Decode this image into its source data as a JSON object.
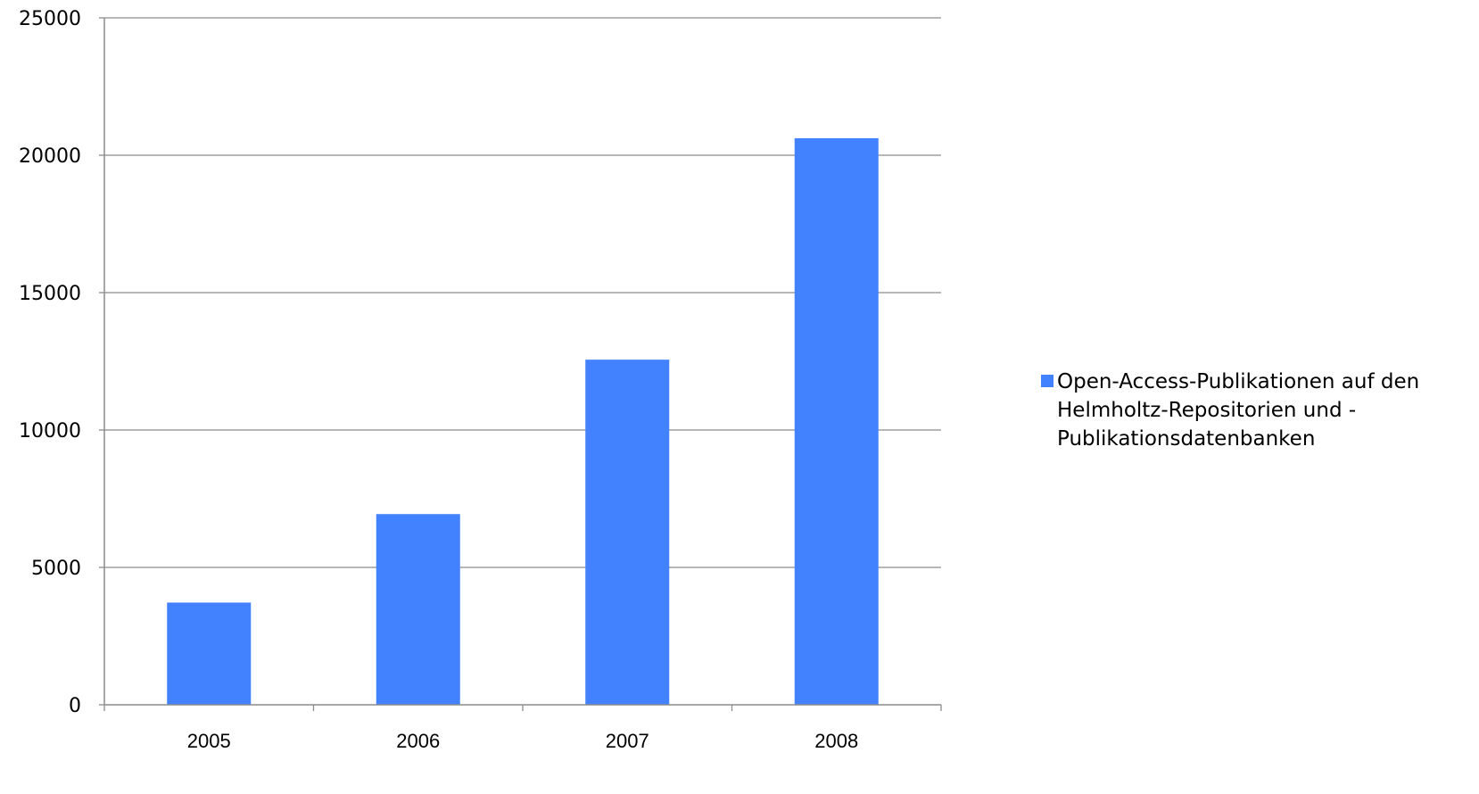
{
  "chart_data": {
    "type": "bar",
    "title": "",
    "xlabel": "",
    "ylabel": "",
    "categories": [
      "2005",
      "2006",
      "2007",
      "2008"
    ],
    "series": [
      {
        "name": "Open-Access-Publikationen auf den Helmholtz-Repositorien und -Publikationsdatenbanken",
        "color": "#4281ff",
        "values": [
          3720,
          6940,
          12560,
          20620
        ]
      }
    ],
    "ylim": [
      0,
      25000
    ],
    "yticks": [
      "0",
      "5000",
      "10000",
      "15000",
      "20000",
      "25000"
    ],
    "grid": true,
    "legend_position": "right"
  },
  "legend": {
    "label_lines": [
      "Open-Access-Publikationen auf den",
      "Helmholtz-Repositorien und -",
      "Publikationsdatenbanken"
    ]
  }
}
